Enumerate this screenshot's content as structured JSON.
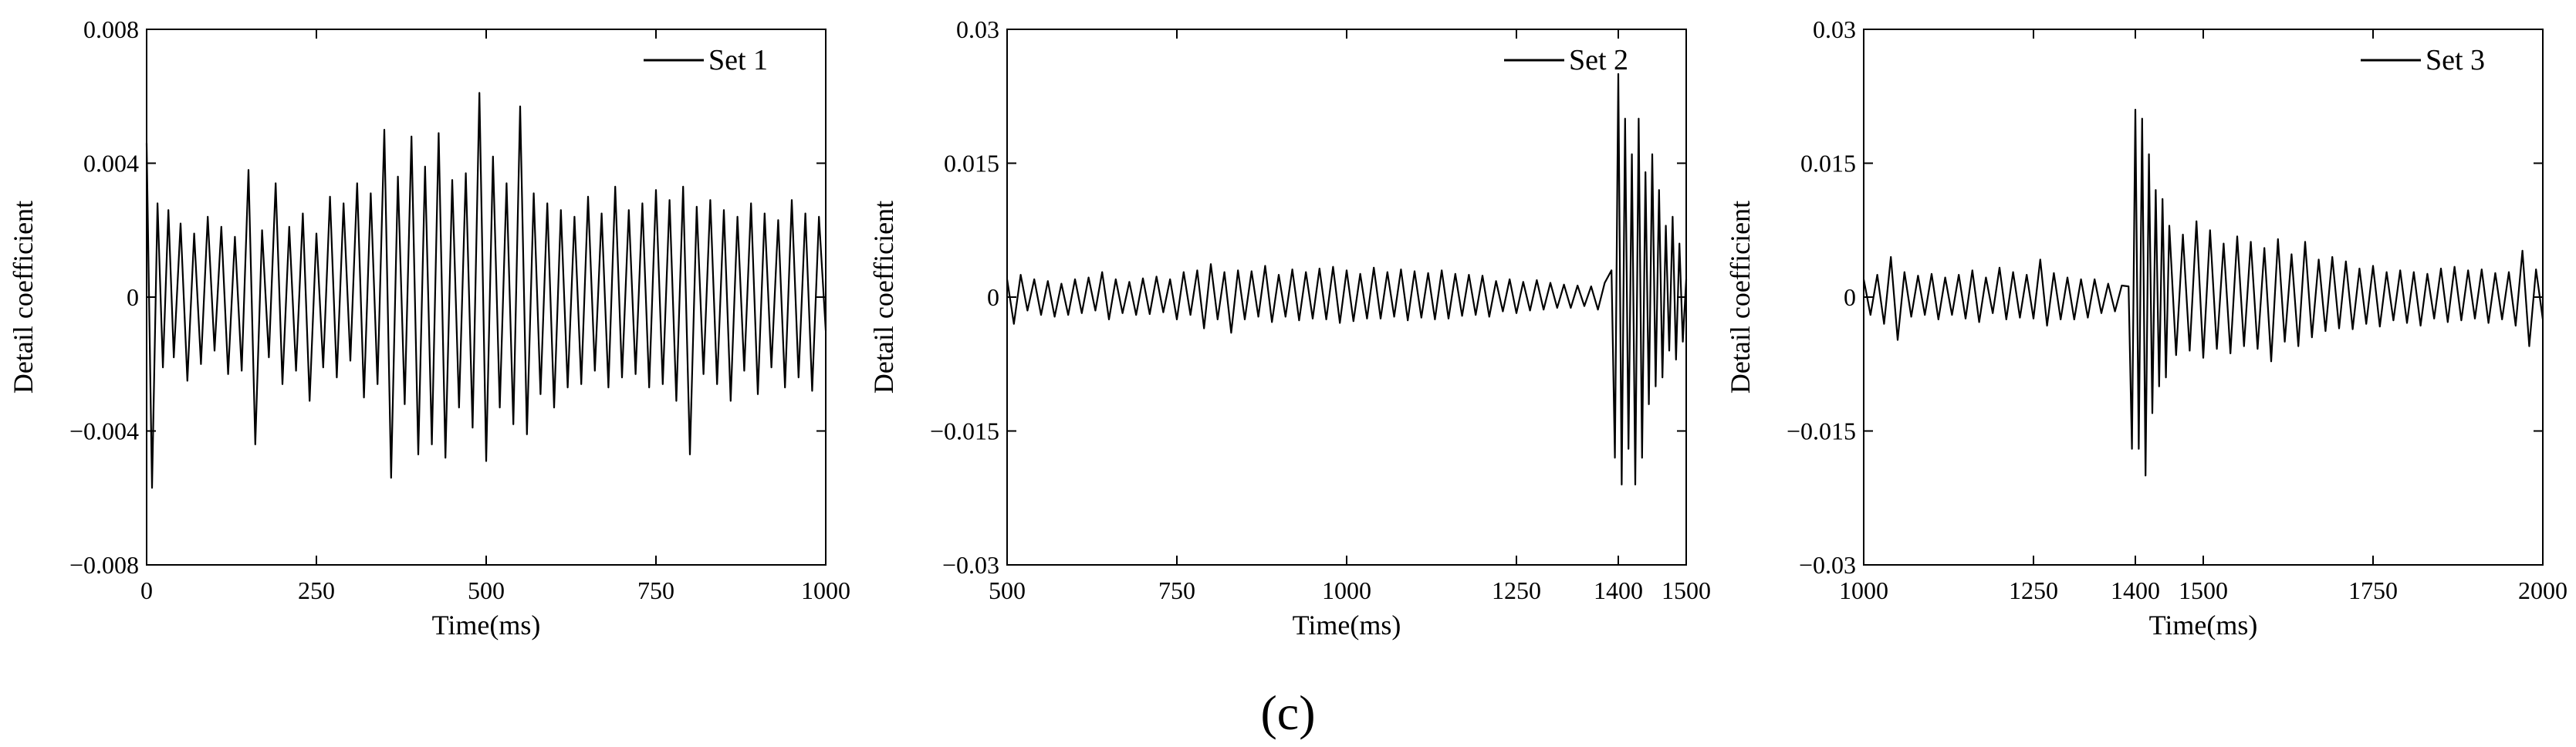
{
  "figure": {
    "panel_label": "(c)"
  },
  "chart_data": [
    {
      "type": "line",
      "xlabel": "Time(ms)",
      "ylabel": "Detail coefficient",
      "xlim": [
        0,
        1000
      ],
      "ylim": [
        -0.008,
        0.008
      ],
      "xticks": [
        0,
        250,
        500,
        750,
        1000
      ],
      "xtick_labels": [
        "0",
        "250",
        "500",
        "750",
        "1000"
      ],
      "yticks": [
        -0.008,
        -0.004,
        0,
        0.004,
        0.008
      ],
      "ytick_labels": [
        "−0.008",
        "−0.004",
        "0",
        "0.004",
        "0.008"
      ],
      "grid": false,
      "legend_position": "top-right",
      "series": [
        {
          "name": "Set 1",
          "color": "#000000",
          "x": [
            0,
            8,
            16,
            24,
            32,
            40,
            50,
            60,
            70,
            80,
            90,
            100,
            110,
            120,
            130,
            140,
            150,
            160,
            170,
            180,
            190,
            200,
            210,
            220,
            230,
            240,
            250,
            260,
            270,
            280,
            290,
            300,
            310,
            320,
            330,
            340,
            350,
            360,
            370,
            380,
            390,
            400,
            410,
            420,
            430,
            440,
            450,
            460,
            470,
            480,
            490,
            500,
            510,
            520,
            530,
            540,
            550,
            560,
            570,
            580,
            590,
            600,
            610,
            620,
            630,
            640,
            650,
            660,
            670,
            680,
            690,
            700,
            710,
            720,
            730,
            740,
            750,
            760,
            770,
            780,
            790,
            800,
            810,
            820,
            830,
            840,
            850,
            860,
            870,
            880,
            890,
            900,
            910,
            920,
            930,
            940,
            950,
            960,
            970,
            980,
            990,
            1000
          ],
          "y": [
            0.0046,
            -0.0057,
            0.0028,
            -0.0021,
            0.0026,
            -0.0018,
            0.0022,
            -0.0025,
            0.0019,
            -0.002,
            0.0024,
            -0.0016,
            0.0021,
            -0.0023,
            0.0018,
            -0.0022,
            0.0038,
            -0.0044,
            0.002,
            -0.0018,
            0.0034,
            -0.0026,
            0.0021,
            -0.0022,
            0.0025,
            -0.0031,
            0.0019,
            -0.0021,
            0.003,
            -0.0024,
            0.0028,
            -0.0019,
            0.0034,
            -0.003,
            0.0031,
            -0.0026,
            0.005,
            -0.0054,
            0.0036,
            -0.0032,
            0.0048,
            -0.0047,
            0.0039,
            -0.0044,
            0.0049,
            -0.0048,
            0.0035,
            -0.0033,
            0.0037,
            -0.0039,
            0.0061,
            -0.0049,
            0.0042,
            -0.0033,
            0.0034,
            -0.0038,
            0.0057,
            -0.0041,
            0.0031,
            -0.0029,
            0.0028,
            -0.0033,
            0.0026,
            -0.0027,
            0.0024,
            -0.0026,
            0.003,
            -0.0022,
            0.0025,
            -0.0027,
            0.0033,
            -0.0024,
            0.0026,
            -0.0023,
            0.0028,
            -0.0027,
            0.0032,
            -0.0026,
            0.0029,
            -0.0031,
            0.0033,
            -0.0047,
            0.0027,
            -0.0023,
            0.0029,
            -0.0026,
            0.0026,
            -0.0031,
            0.0024,
            -0.0022,
            0.0028,
            -0.0029,
            0.0025,
            -0.0021,
            0.0023,
            -0.0027,
            0.0029,
            -0.0024,
            0.0025,
            -0.0028,
            0.0024,
            -0.001
          ]
        }
      ]
    },
    {
      "type": "line",
      "xlabel": "Time(ms)",
      "ylabel": "Detail coefficient",
      "xlim": [
        500,
        1500
      ],
      "ylim": [
        -0.03,
        0.03
      ],
      "xticks": [
        500,
        750,
        1000,
        1250,
        1400,
        1500
      ],
      "xtick_labels": [
        "500",
        "750",
        "1000",
        "1250",
        "1400",
        "1500"
      ],
      "yticks": [
        -0.03,
        -0.015,
        0,
        0.015,
        0.03
      ],
      "ytick_labels": [
        "−0.03",
        "−0.015",
        "0",
        "0.015",
        "0.03"
      ],
      "grid": false,
      "legend_position": "top-right",
      "series": [
        {
          "name": "Set 2",
          "color": "#000000",
          "x": [
            500,
            510,
            520,
            530,
            540,
            550,
            560,
            570,
            580,
            590,
            600,
            610,
            620,
            630,
            640,
            650,
            660,
            670,
            680,
            690,
            700,
            710,
            720,
            730,
            740,
            750,
            760,
            770,
            780,
            790,
            800,
            810,
            820,
            830,
            840,
            850,
            860,
            870,
            880,
            890,
            900,
            910,
            920,
            930,
            940,
            950,
            960,
            970,
            980,
            990,
            1000,
            1010,
            1020,
            1030,
            1040,
            1050,
            1060,
            1070,
            1080,
            1090,
            1100,
            1110,
            1120,
            1130,
            1140,
            1150,
            1160,
            1170,
            1180,
            1190,
            1200,
            1210,
            1220,
            1230,
            1240,
            1250,
            1260,
            1270,
            1280,
            1290,
            1300,
            1310,
            1320,
            1330,
            1340,
            1350,
            1360,
            1370,
            1380,
            1390,
            1395,
            1400,
            1405,
            1410,
            1415,
            1420,
            1425,
            1430,
            1435,
            1440,
            1445,
            1450,
            1455,
            1460,
            1465,
            1470,
            1475,
            1480,
            1485,
            1490,
            1495,
            1500
          ],
          "y": [
            0.002,
            -0.003,
            0.0025,
            -0.0015,
            0.002,
            -0.002,
            0.0018,
            -0.0022,
            0.0015,
            -0.002,
            0.002,
            -0.0018,
            0.0022,
            -0.0015,
            0.0028,
            -0.0025,
            0.002,
            -0.0018,
            0.0017,
            -0.002,
            0.0021,
            -0.0019,
            0.0023,
            -0.0017,
            0.002,
            -0.0025,
            0.0028,
            -0.002,
            0.003,
            -0.0035,
            0.0037,
            -0.0025,
            0.0028,
            -0.004,
            0.003,
            -0.0025,
            0.0029,
            -0.0022,
            0.0035,
            -0.0028,
            0.0025,
            -0.0022,
            0.0031,
            -0.0026,
            0.0028,
            -0.0024,
            0.0032,
            -0.0025,
            0.0034,
            -0.0029,
            0.003,
            -0.0027,
            0.0026,
            -0.0024,
            0.0033,
            -0.0024,
            0.0028,
            -0.0022,
            0.0031,
            -0.0026,
            0.0029,
            -0.0023,
            0.0027,
            -0.0025,
            0.003,
            -0.0024,
            0.0026,
            -0.0021,
            0.0025,
            -0.002,
            0.0024,
            -0.0022,
            0.0018,
            -0.0016,
            0.002,
            -0.0018,
            0.0017,
            -0.0015,
            0.0019,
            -0.0014,
            0.0016,
            -0.0012,
            0.0014,
            -0.0012,
            0.0013,
            -0.001,
            0.0012,
            -0.0014,
            0.0016,
            0.003,
            -0.018,
            0.025,
            -0.021,
            0.02,
            -0.017,
            0.016,
            -0.021,
            0.02,
            -0.018,
            0.014,
            -0.012,
            0.016,
            -0.01,
            0.012,
            -0.009,
            0.008,
            -0.006,
            0.009,
            -0.007,
            0.006,
            -0.005,
            0.002
          ]
        }
      ]
    },
    {
      "type": "line",
      "xlabel": "Time(ms)",
      "ylabel": "Detail coefficient",
      "xlim": [
        1000,
        2000
      ],
      "ylim": [
        -0.03,
        0.03
      ],
      "xticks": [
        1000,
        1250,
        1400,
        1500,
        1750,
        2000
      ],
      "xtick_labels": [
        "1000",
        "1250",
        "1400",
        "1500",
        "1750",
        "2000"
      ],
      "yticks": [
        -0.03,
        -0.015,
        0,
        0.015,
        0.03
      ],
      "ytick_labels": [
        "−0.03",
        "−0.015",
        "0",
        "0.015",
        "0.03"
      ],
      "grid": false,
      "legend_position": "top-right",
      "series": [
        {
          "name": "Set 3",
          "color": "#000000",
          "x": [
            1000,
            1010,
            1020,
            1030,
            1040,
            1050,
            1060,
            1070,
            1080,
            1090,
            1100,
            1110,
            1120,
            1130,
            1140,
            1150,
            1160,
            1170,
            1180,
            1190,
            1200,
            1210,
            1220,
            1230,
            1240,
            1250,
            1260,
            1270,
            1280,
            1290,
            1300,
            1310,
            1320,
            1330,
            1340,
            1350,
            1360,
            1370,
            1380,
            1390,
            1395,
            1400,
            1405,
            1410,
            1415,
            1420,
            1425,
            1430,
            1435,
            1440,
            1445,
            1450,
            1460,
            1470,
            1480,
            1490,
            1500,
            1510,
            1520,
            1530,
            1540,
            1550,
            1560,
            1570,
            1580,
            1590,
            1600,
            1610,
            1620,
            1630,
            1640,
            1650,
            1660,
            1670,
            1680,
            1690,
            1700,
            1710,
            1720,
            1730,
            1740,
            1750,
            1760,
            1770,
            1780,
            1790,
            1800,
            1810,
            1820,
            1830,
            1840,
            1850,
            1860,
            1870,
            1880,
            1890,
            1900,
            1910,
            1920,
            1930,
            1940,
            1950,
            1960,
            1970,
            1980,
            1990,
            2000
          ],
          "y": [
            0.002,
            -0.002,
            0.0025,
            -0.003,
            0.0045,
            -0.0048,
            0.0028,
            -0.0022,
            0.0024,
            -0.002,
            0.0026,
            -0.0025,
            0.0022,
            -0.002,
            0.0025,
            -0.0024,
            0.003,
            -0.0028,
            0.0022,
            -0.0018,
            0.0033,
            -0.0025,
            0.0028,
            -0.0023,
            0.0025,
            -0.0024,
            0.0042,
            -0.0032,
            0.0027,
            -0.0025,
            0.0022,
            -0.0025,
            0.002,
            -0.0023,
            0.002,
            -0.0018,
            0.0015,
            -0.0016,
            0.0013,
            0.0012,
            -0.017,
            0.021,
            -0.017,
            0.02,
            -0.02,
            0.016,
            -0.013,
            0.012,
            -0.01,
            0.011,
            -0.009,
            0.008,
            -0.0065,
            0.007,
            -0.006,
            0.0085,
            -0.0068,
            0.0075,
            -0.0058,
            0.006,
            -0.0063,
            0.0068,
            -0.0055,
            0.0062,
            -0.0058,
            0.0055,
            -0.0072,
            0.0065,
            -0.005,
            0.0048,
            -0.0055,
            0.0062,
            -0.0045,
            0.0042,
            -0.0038,
            0.0045,
            -0.0035,
            0.004,
            -0.0036,
            0.0032,
            -0.003,
            0.0035,
            -0.0033,
            0.0028,
            -0.0026,
            0.003,
            -0.0029,
            0.0028,
            -0.0032,
            0.0026,
            -0.0024,
            0.0032,
            -0.0028,
            0.0034,
            -0.0026,
            0.003,
            -0.0024,
            0.0031,
            -0.0029,
            0.0027,
            -0.0025,
            0.0028,
            -0.0032,
            0.0052,
            -0.0055,
            0.0031,
            -0.0025
          ]
        }
      ]
    }
  ]
}
